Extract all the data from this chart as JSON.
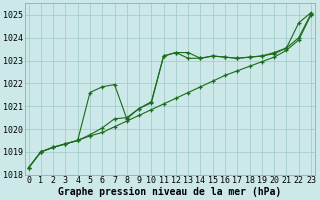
{
  "title": "Graphe pression niveau de la mer (hPa)",
  "x_values": [
    0,
    1,
    2,
    3,
    4,
    5,
    6,
    7,
    8,
    9,
    10,
    11,
    12,
    13,
    14,
    15,
    16,
    17,
    18,
    19,
    20,
    21,
    22,
    23
  ],
  "series1": [
    1018.3,
    1019.0,
    1019.2,
    1019.35,
    1019.5,
    1019.7,
    1019.85,
    1020.1,
    1020.35,
    1020.6,
    1020.85,
    1021.1,
    1021.35,
    1021.6,
    1021.85,
    1022.1,
    1022.35,
    1022.55,
    1022.75,
    1022.95,
    1023.15,
    1023.45,
    1023.9,
    1025.0
  ],
  "series2": [
    1018.3,
    1019.0,
    1019.2,
    1019.35,
    1019.5,
    1019.75,
    1020.05,
    1020.45,
    1020.5,
    1020.9,
    1021.15,
    1023.2,
    1023.35,
    1023.35,
    1023.1,
    1023.2,
    1023.15,
    1023.1,
    1023.15,
    1023.2,
    1023.3,
    1023.55,
    1024.0,
    1025.05
  ],
  "series3": [
    1018.3,
    1019.0,
    1019.2,
    1019.35,
    1019.5,
    1021.6,
    1021.85,
    1021.95,
    1020.45,
    1020.9,
    1021.2,
    1023.2,
    1023.35,
    1023.1,
    1023.1,
    1023.2,
    1023.15,
    1023.1,
    1023.15,
    1023.2,
    1023.35,
    1023.55,
    1024.65,
    1025.1
  ],
  "line_color": "#1a6b1a",
  "marker_color": "#1a6b1a",
  "bg_color": "#cce8e8",
  "grid_color": "#9ec8c8",
  "xlim": [
    -0.3,
    23.3
  ],
  "ylim": [
    1018,
    1025.5
  ],
  "yticks": [
    1018,
    1019,
    1020,
    1021,
    1022,
    1023,
    1024,
    1025
  ],
  "xticks": [
    0,
    1,
    2,
    3,
    4,
    5,
    6,
    7,
    8,
    9,
    10,
    11,
    12,
    13,
    14,
    15,
    16,
    17,
    18,
    19,
    20,
    21,
    22,
    23
  ],
  "tick_fontsize": 6.0,
  "title_fontsize": 7.0
}
